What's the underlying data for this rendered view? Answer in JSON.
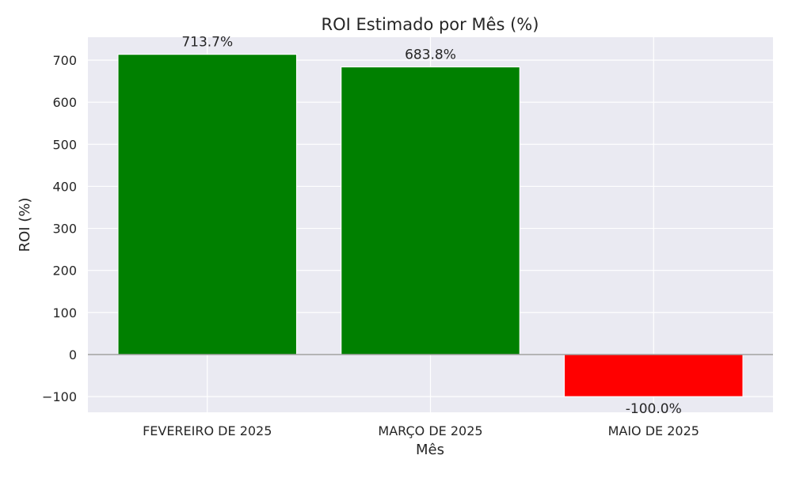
{
  "chart_data": {
    "type": "bar",
    "title": "ROI Estimado por Mês (%)",
    "xlabel": "Mês",
    "ylabel": "ROI (%)",
    "categories": [
      "FEVEREIRO DE 2025",
      "MARÇO DE 2025",
      "MAIO DE 2025"
    ],
    "values": [
      713.7,
      683.8,
      -100.0
    ],
    "data_labels": [
      "713.7%",
      "683.8%",
      "-100.0%"
    ],
    "bar_colors": [
      "#008000",
      "#008000",
      "#ff0000"
    ],
    "ylim": [
      -137.4,
      754.6
    ],
    "yticks": [
      -100,
      0,
      100,
      200,
      300,
      400,
      500,
      600,
      700
    ],
    "ytick_labels": [
      "−100",
      "0",
      "100",
      "200",
      "300",
      "400",
      "500",
      "600",
      "700"
    ],
    "grid": true,
    "zero_line": true,
    "background": "#eaeaf2"
  }
}
